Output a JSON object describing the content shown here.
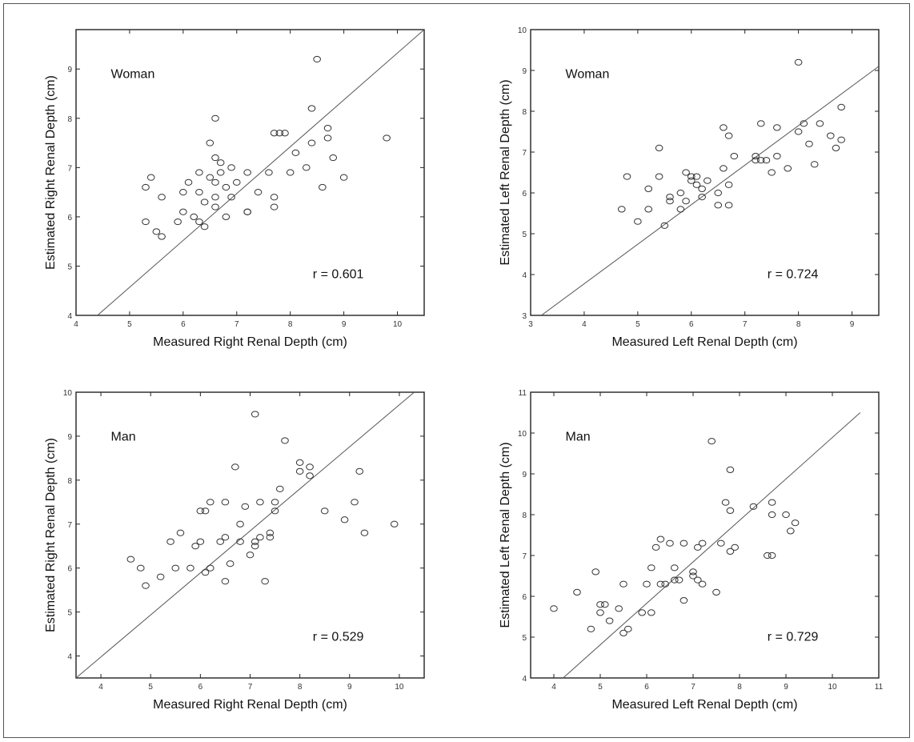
{
  "chart_data": [
    {
      "type": "scatter",
      "group": "Woman",
      "r": "r = 0.601",
      "xlabel": "Measured Right Renal Depth (cm)",
      "ylabel": "Estimated Right Renal Depth (cm)",
      "xlim": [
        4,
        10.5
      ],
      "ylim": [
        4,
        9.8
      ],
      "xticks": [
        4,
        5,
        6,
        7,
        8,
        9,
        10
      ],
      "yticks": [
        4,
        5,
        6,
        7,
        8,
        9
      ],
      "fit_line": [
        [
          4.4,
          4.0
        ],
        [
          10.5,
          9.8
        ]
      ],
      "points": [
        [
          5.3,
          6.6
        ],
        [
          5.4,
          6.8
        ],
        [
          5.3,
          5.9
        ],
        [
          5.5,
          5.7
        ],
        [
          5.6,
          5.6
        ],
        [
          5.6,
          6.4
        ],
        [
          5.9,
          5.9
        ],
        [
          6.0,
          6.5
        ],
        [
          6.0,
          6.1
        ],
        [
          6.1,
          6.7
        ],
        [
          6.2,
          6.0
        ],
        [
          6.3,
          6.9
        ],
        [
          6.3,
          6.5
        ],
        [
          6.4,
          6.3
        ],
        [
          6.3,
          5.9
        ],
        [
          6.4,
          5.8
        ],
        [
          6.5,
          7.5
        ],
        [
          6.5,
          6.8
        ],
        [
          6.6,
          7.2
        ],
        [
          6.6,
          6.7
        ],
        [
          6.6,
          6.4
        ],
        [
          6.6,
          6.2
        ],
        [
          6.7,
          7.1
        ],
        [
          6.7,
          6.9
        ],
        [
          6.6,
          8.0
        ],
        [
          6.8,
          6.6
        ],
        [
          6.8,
          6.0
        ],
        [
          6.9,
          6.4
        ],
        [
          6.9,
          7.0
        ],
        [
          7.0,
          6.7
        ],
        [
          7.2,
          6.9
        ],
        [
          7.2,
          6.1
        ],
        [
          7.2,
          6.1
        ],
        [
          7.4,
          6.5
        ],
        [
          7.6,
          6.9
        ],
        [
          7.7,
          7.7
        ],
        [
          7.8,
          7.7
        ],
        [
          7.7,
          6.4
        ],
        [
          7.7,
          6.2
        ],
        [
          7.9,
          7.7
        ],
        [
          8.0,
          6.9
        ],
        [
          8.1,
          7.3
        ],
        [
          8.3,
          7.0
        ],
        [
          8.4,
          7.5
        ],
        [
          8.4,
          8.2
        ],
        [
          8.5,
          9.2
        ],
        [
          8.6,
          6.6
        ],
        [
          8.7,
          7.6
        ],
        [
          8.7,
          7.8
        ],
        [
          8.8,
          7.2
        ],
        [
          9.0,
          6.8
        ],
        [
          9.8,
          7.6
        ]
      ]
    },
    {
      "type": "scatter",
      "group": "Woman",
      "r": "r = 0.724",
      "xlabel": "Measured  Left  Renal Depth (cm)",
      "ylabel": "Estimated  Left Renal Depth (cm)",
      "xlim": [
        3,
        9.5
      ],
      "ylim": [
        3,
        10
      ],
      "xticks": [
        3,
        4,
        5,
        6,
        7,
        8,
        9
      ],
      "yticks": [
        3,
        4,
        5,
        6,
        7,
        8,
        9,
        10
      ],
      "fit_line": [
        [
          3.2,
          3.0
        ],
        [
          9.5,
          9.1
        ]
      ],
      "points": [
        [
          4.7,
          5.6
        ],
        [
          4.8,
          6.4
        ],
        [
          5.0,
          5.3
        ],
        [
          5.2,
          6.1
        ],
        [
          5.2,
          5.6
        ],
        [
          5.4,
          7.1
        ],
        [
          5.4,
          6.4
        ],
        [
          5.5,
          5.2
        ],
        [
          5.6,
          5.9
        ],
        [
          5.6,
          5.8
        ],
        [
          5.8,
          6.0
        ],
        [
          5.8,
          5.6
        ],
        [
          5.9,
          6.5
        ],
        [
          5.9,
          5.8
        ],
        [
          6.0,
          6.4
        ],
        [
          6.0,
          6.3
        ],
        [
          6.1,
          6.2
        ],
        [
          6.1,
          6.4
        ],
        [
          6.2,
          5.9
        ],
        [
          6.2,
          6.1
        ],
        [
          6.3,
          6.3
        ],
        [
          6.5,
          6.0
        ],
        [
          6.5,
          5.7
        ],
        [
          6.6,
          6.6
        ],
        [
          6.6,
          7.6
        ],
        [
          6.7,
          7.4
        ],
        [
          6.7,
          6.2
        ],
        [
          6.7,
          5.7
        ],
        [
          6.8,
          6.9
        ],
        [
          7.2,
          6.9
        ],
        [
          7.2,
          6.8
        ],
        [
          7.3,
          7.7
        ],
        [
          7.3,
          6.8
        ],
        [
          7.4,
          6.8
        ],
        [
          7.5,
          6.5
        ],
        [
          7.6,
          6.9
        ],
        [
          7.6,
          7.6
        ],
        [
          7.8,
          6.6
        ],
        [
          8.0,
          7.5
        ],
        [
          8.0,
          9.2
        ],
        [
          8.1,
          7.7
        ],
        [
          8.2,
          7.2
        ],
        [
          8.3,
          6.7
        ],
        [
          8.4,
          7.7
        ],
        [
          8.6,
          7.4
        ],
        [
          8.7,
          7.1
        ],
        [
          8.8,
          8.1
        ],
        [
          8.8,
          7.3
        ]
      ]
    },
    {
      "type": "scatter",
      "group": "Man",
      "r": "r = 0.529",
      "xlabel": "Measured Right Renal Depth (cm)",
      "ylabel": "Estimated Right Renal Depth (cm)",
      "xlim": [
        3.5,
        10.5
      ],
      "ylim": [
        3.5,
        10
      ],
      "xticks": [
        4,
        5,
        6,
        7,
        8,
        9,
        10
      ],
      "yticks": [
        4,
        5,
        6,
        7,
        8,
        9,
        10
      ],
      "fit_line": [
        [
          3.5,
          3.5
        ],
        [
          10.3,
          10.0
        ]
      ],
      "points": [
        [
          4.6,
          6.2
        ],
        [
          4.8,
          6.0
        ],
        [
          4.9,
          5.6
        ],
        [
          5.2,
          5.8
        ],
        [
          5.4,
          6.6
        ],
        [
          5.5,
          6.0
        ],
        [
          5.6,
          6.8
        ],
        [
          5.8,
          6.0
        ],
        [
          5.9,
          6.5
        ],
        [
          6.0,
          6.6
        ],
        [
          6.0,
          7.3
        ],
        [
          6.1,
          7.3
        ],
        [
          6.1,
          5.9
        ],
        [
          6.2,
          7.5
        ],
        [
          6.2,
          6.0
        ],
        [
          6.4,
          6.6
        ],
        [
          6.5,
          6.7
        ],
        [
          6.5,
          7.5
        ],
        [
          6.5,
          5.7
        ],
        [
          6.6,
          6.1
        ],
        [
          6.7,
          8.3
        ],
        [
          6.8,
          7.0
        ],
        [
          6.8,
          6.6
        ],
        [
          6.9,
          7.4
        ],
        [
          7.0,
          6.3
        ],
        [
          7.1,
          6.5
        ],
        [
          7.1,
          6.6
        ],
        [
          7.1,
          9.5
        ],
        [
          7.2,
          7.5
        ],
        [
          7.2,
          6.7
        ],
        [
          7.3,
          5.7
        ],
        [
          7.4,
          6.7
        ],
        [
          7.4,
          6.8
        ],
        [
          7.5,
          7.3
        ],
        [
          7.5,
          7.5
        ],
        [
          7.6,
          7.8
        ],
        [
          7.7,
          8.9
        ],
        [
          8.0,
          8.2
        ],
        [
          8.0,
          8.4
        ],
        [
          8.2,
          8.1
        ],
        [
          8.2,
          8.3
        ],
        [
          8.5,
          7.3
        ],
        [
          8.9,
          7.1
        ],
        [
          9.1,
          7.5
        ],
        [
          9.2,
          8.2
        ],
        [
          9.3,
          6.8
        ],
        [
          9.9,
          7.0
        ]
      ]
    },
    {
      "type": "scatter",
      "group": "Man",
      "r": "r = 0.729",
      "xlabel": "Measured  Left  Renal Depth (cm)",
      "ylabel": "Estimated  Left Renal Depth (cm)",
      "xlim": [
        3.5,
        11
      ],
      "ylim": [
        4,
        11
      ],
      "xticks": [
        4,
        5,
        6,
        7,
        8,
        9,
        10,
        11
      ],
      "yticks": [
        4,
        5,
        6,
        7,
        8,
        9,
        10,
        11
      ],
      "fit_line": [
        [
          4.2,
          4.0
        ],
        [
          10.6,
          10.5
        ]
      ],
      "points": [
        [
          4.0,
          5.7
        ],
        [
          4.5,
          6.1
        ],
        [
          4.8,
          5.2
        ],
        [
          4.9,
          6.6
        ],
        [
          5.0,
          5.8
        ],
        [
          5.0,
          5.6
        ],
        [
          5.1,
          5.8
        ],
        [
          5.2,
          5.4
        ],
        [
          5.4,
          5.7
        ],
        [
          5.5,
          5.1
        ],
        [
          5.5,
          6.3
        ],
        [
          5.6,
          5.2
        ],
        [
          5.9,
          5.6
        ],
        [
          6.0,
          6.3
        ],
        [
          6.1,
          5.6
        ],
        [
          6.1,
          6.7
        ],
        [
          6.2,
          7.2
        ],
        [
          6.3,
          6.3
        ],
        [
          6.3,
          7.4
        ],
        [
          6.4,
          6.3
        ],
        [
          6.5,
          7.3
        ],
        [
          6.6,
          6.4
        ],
        [
          6.6,
          6.7
        ],
        [
          6.7,
          6.4
        ],
        [
          6.8,
          5.9
        ],
        [
          6.8,
          7.3
        ],
        [
          7.0,
          6.5
        ],
        [
          7.0,
          6.6
        ],
        [
          7.1,
          6.4
        ],
        [
          7.1,
          7.2
        ],
        [
          7.2,
          6.3
        ],
        [
          7.2,
          7.3
        ],
        [
          7.4,
          9.8
        ],
        [
          7.5,
          6.1
        ],
        [
          7.6,
          7.3
        ],
        [
          7.7,
          8.3
        ],
        [
          7.8,
          8.1
        ],
        [
          7.8,
          9.1
        ],
        [
          7.8,
          7.1
        ],
        [
          7.9,
          7.2
        ],
        [
          8.3,
          8.2
        ],
        [
          8.6,
          7.0
        ],
        [
          8.7,
          7.0
        ],
        [
          8.7,
          8.0
        ],
        [
          8.7,
          8.3
        ],
        [
          9.0,
          8.0
        ],
        [
          9.1,
          7.6
        ],
        [
          9.2,
          7.8
        ]
      ]
    }
  ]
}
